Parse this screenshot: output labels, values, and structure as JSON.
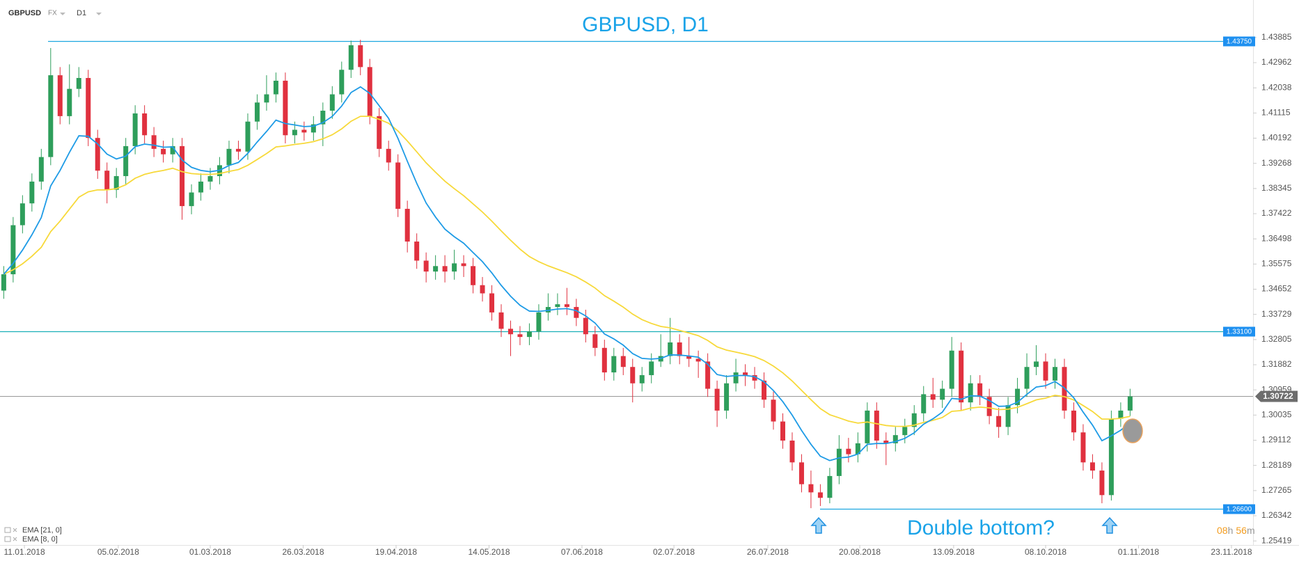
{
  "chart_data": {
    "type": "candlestick",
    "title": "GBPUSD, D1",
    "symbol": "GBPUSD",
    "market": "FX",
    "timeframe": "D1",
    "up_color": "#2e9e5b",
    "down_color": "#e0313f",
    "open": [
      1.346,
      1.352,
      1.37,
      1.378,
      1.386,
      1.395,
      1.425,
      1.41,
      1.42,
      1.424,
      1.402,
      1.39,
      1.383,
      1.388,
      1.399,
      1.411,
      1.403,
      1.398,
      1.396,
      1.399,
      1.377,
      1.382,
      1.386,
      1.388,
      1.392,
      1.398,
      1.397,
      1.408,
      1.415,
      1.418,
      1.423,
      1.403,
      1.405,
      1.404,
      1.407,
      1.412,
      1.418,
      1.427,
      1.436,
      1.428,
      1.41,
      1.398,
      1.393,
      1.376,
      1.364,
      1.357,
      1.353,
      1.355,
      1.353,
      1.356,
      1.355,
      1.348,
      1.345,
      1.338,
      1.332,
      1.33,
      1.329,
      1.331,
      1.338,
      1.34,
      1.341,
      1.34,
      1.336,
      1.33,
      1.325,
      1.316,
      1.322,
      1.318,
      1.312,
      1.315,
      1.32,
      1.322,
      1.327,
      1.322,
      1.321,
      1.32,
      1.31,
      1.302,
      1.312,
      1.316,
      1.315,
      1.313,
      1.306,
      1.298,
      1.291,
      1.283,
      1.275,
      1.272,
      1.27,
      1.278,
      1.288,
      1.286,
      1.29,
      1.302,
      1.291,
      1.29,
      1.293,
      1.296,
      1.301,
      1.308,
      1.306,
      1.31,
      1.324,
      1.305,
      1.312,
      1.307,
      1.3,
      1.296,
      1.304,
      1.31,
      1.318,
      1.32,
      1.313,
      1.318,
      1.302,
      1.294,
      1.283,
      1.28,
      1.271,
      1.299,
      1.302
    ],
    "high": [
      1.355,
      1.373,
      1.381,
      1.389,
      1.398,
      1.435,
      1.428,
      1.429,
      1.428,
      1.427,
      1.405,
      1.393,
      1.391,
      1.402,
      1.414,
      1.414,
      1.406,
      1.401,
      1.402,
      1.402,
      1.385,
      1.389,
      1.391,
      1.395,
      1.401,
      1.401,
      1.411,
      1.418,
      1.425,
      1.426,
      1.426,
      1.408,
      1.408,
      1.41,
      1.415,
      1.421,
      1.43,
      1.4377,
      1.438,
      1.431,
      1.413,
      1.401,
      1.396,
      1.379,
      1.367,
      1.36,
      1.359,
      1.359,
      1.361,
      1.359,
      1.358,
      1.351,
      1.348,
      1.341,
      1.335,
      1.333,
      1.334,
      1.341,
      1.345,
      1.345,
      1.347,
      1.343,
      1.339,
      1.333,
      1.328,
      1.325,
      1.325,
      1.321,
      1.318,
      1.323,
      1.33,
      1.336,
      1.33,
      1.329,
      1.324,
      1.323,
      1.313,
      1.315,
      1.321,
      1.319,
      1.318,
      1.316,
      1.309,
      1.301,
      1.294,
      1.286,
      1.28,
      1.275,
      1.281,
      1.293,
      1.292,
      1.294,
      1.305,
      1.305,
      1.294,
      1.296,
      1.299,
      1.304,
      1.311,
      1.314,
      1.313,
      1.329,
      1.327,
      1.315,
      1.315,
      1.31,
      1.303,
      1.307,
      1.314,
      1.323,
      1.326,
      1.323,
      1.321,
      1.321,
      1.305,
      1.297,
      1.286,
      1.283,
      1.302,
      1.305,
      1.31
    ],
    "low": [
      1.343,
      1.349,
      1.367,
      1.375,
      1.383,
      1.392,
      1.407,
      1.407,
      1.417,
      1.399,
      1.387,
      1.378,
      1.38,
      1.385,
      1.396,
      1.4,
      1.395,
      1.393,
      1.393,
      1.372,
      1.374,
      1.379,
      1.383,
      1.385,
      1.389,
      1.394,
      1.394,
      1.405,
      1.412,
      1.415,
      1.4,
      1.4,
      1.401,
      1.401,
      1.399,
      1.409,
      1.415,
      1.424,
      1.425,
      1.407,
      1.395,
      1.39,
      1.373,
      1.36,
      1.354,
      1.349,
      1.35,
      1.349,
      1.35,
      1.351,
      1.345,
      1.342,
      1.335,
      1.329,
      1.322,
      1.326,
      1.326,
      1.328,
      1.335,
      1.337,
      1.337,
      1.333,
      1.327,
      1.322,
      1.313,
      1.313,
      1.315,
      1.305,
      1.309,
      1.312,
      1.318,
      1.319,
      1.319,
      1.318,
      1.314,
      1.307,
      1.296,
      1.299,
      1.309,
      1.311,
      1.31,
      1.303,
      1.295,
      1.288,
      1.28,
      1.272,
      1.2662,
      1.267,
      1.268,
      1.275,
      1.283,
      1.283,
      1.287,
      1.288,
      1.282,
      1.287,
      1.29,
      1.293,
      1.298,
      1.303,
      1.303,
      1.307,
      1.302,
      1.302,
      1.304,
      1.297,
      1.292,
      1.293,
      1.301,
      1.307,
      1.315,
      1.31,
      1.31,
      1.299,
      1.291,
      1.28,
      1.277,
      1.268,
      1.269,
      1.296,
      1.3
    ],
    "close": [
      1.352,
      1.37,
      1.378,
      1.386,
      1.395,
      1.425,
      1.41,
      1.42,
      1.424,
      1.402,
      1.39,
      1.383,
      1.388,
      1.399,
      1.411,
      1.403,
      1.398,
      1.396,
      1.399,
      1.377,
      1.382,
      1.386,
      1.388,
      1.392,
      1.398,
      1.397,
      1.408,
      1.415,
      1.418,
      1.423,
      1.403,
      1.405,
      1.404,
      1.407,
      1.412,
      1.418,
      1.427,
      1.436,
      1.428,
      1.41,
      1.398,
      1.393,
      1.376,
      1.364,
      1.357,
      1.353,
      1.355,
      1.353,
      1.356,
      1.355,
      1.348,
      1.345,
      1.338,
      1.332,
      1.33,
      1.329,
      1.331,
      1.338,
      1.34,
      1.341,
      1.34,
      1.336,
      1.33,
      1.325,
      1.316,
      1.322,
      1.318,
      1.312,
      1.315,
      1.32,
      1.322,
      1.327,
      1.322,
      1.321,
      1.32,
      1.31,
      1.302,
      1.312,
      1.316,
      1.315,
      1.313,
      1.306,
      1.298,
      1.291,
      1.283,
      1.275,
      1.272,
      1.27,
      1.278,
      1.288,
      1.286,
      1.29,
      1.302,
      1.291,
      1.29,
      1.293,
      1.296,
      1.301,
      1.308,
      1.306,
      1.31,
      1.324,
      1.305,
      1.312,
      1.307,
      1.3,
      1.296,
      1.304,
      1.31,
      1.318,
      1.32,
      1.313,
      1.318,
      1.302,
      1.294,
      1.283,
      1.28,
      1.271,
      1.299,
      1.302,
      1.3072
    ],
    "indicators": [
      {
        "label": "EMA [21, 0]",
        "color": "#f7d93a"
      },
      {
        "label": "EMA [8, 0]",
        "color": "#1e9be6"
      }
    ],
    "levels": [
      {
        "value": 1.4375,
        "label": "1.43750",
        "color": "#1ea7e0"
      },
      {
        "value": 1.331,
        "label": "1.33100",
        "color": "#1ab0b8"
      },
      {
        "value": 1.266,
        "label": "1.26600",
        "color": "#1ea7e0"
      }
    ],
    "current_price": {
      "value": 1.30722,
      "label": "1.30722"
    },
    "annotation": "Double bottom?",
    "timer": [
      "08",
      "h",
      "56",
      "m"
    ],
    "xlim": [
      -0.4,
      133.1
    ],
    "xticks": [
      {
        "value": 2.2,
        "label": "11.01.2018"
      },
      {
        "value": 12.2,
        "label": "05.02.2018"
      },
      {
        "value": 22.0,
        "label": "01.03.2018"
      },
      {
        "value": 31.9,
        "label": "26.03.2018"
      },
      {
        "value": 41.8,
        "label": "19.04.2018"
      },
      {
        "value": 51.7,
        "label": "14.05.2018"
      },
      {
        "value": 61.6,
        "label": "07.06.2018"
      },
      {
        "value": 71.4,
        "label": "02.07.2018"
      },
      {
        "value": 81.4,
        "label": "26.07.2018"
      },
      {
        "value": 91.2,
        "label": "20.08.2018"
      },
      {
        "value": 101.2,
        "label": "13.09.2018"
      },
      {
        "value": 111.0,
        "label": "08.10.2018"
      },
      {
        "value": 120.9,
        "label": "01.11.2018"
      },
      {
        "value": 130.8,
        "label": "23.11.2018"
      }
    ],
    "ylim": [
      1.2527,
      1.4526
    ],
    "yticks": [
      1.43885,
      1.42962,
      1.42038,
      1.41115,
      1.40192,
      1.39268,
      1.38345,
      1.37422,
      1.36498,
      1.35575,
      1.34652,
      1.33729,
      1.32805,
      1.31882,
      1.30959,
      1.30035,
      1.29112,
      1.28189,
      1.27265,
      1.26342,
      1.25419
    ],
    "grid": false
  }
}
